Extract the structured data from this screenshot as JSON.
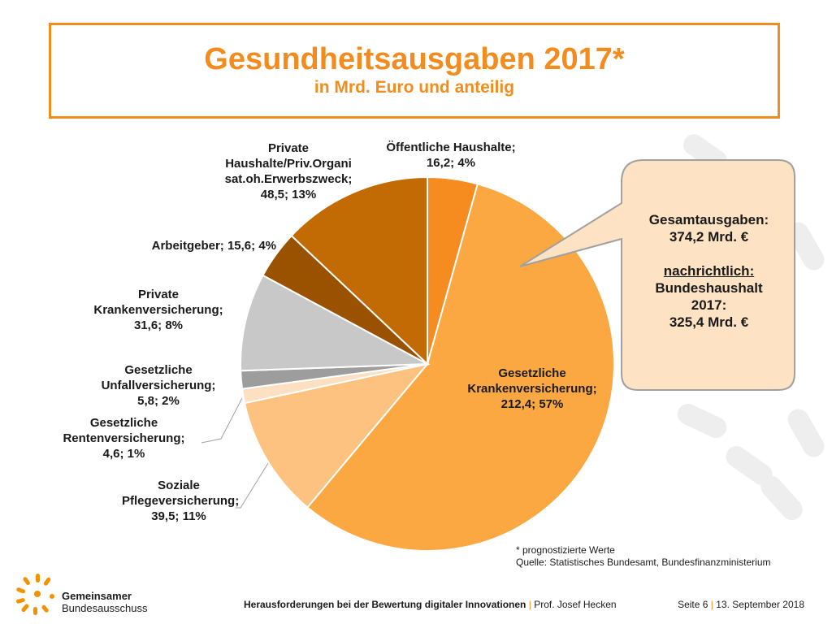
{
  "title": "Gesundheitsausgaben 2017*",
  "subtitle": "in Mrd. Euro und anteilig",
  "chart_data": {
    "type": "pie",
    "title": "Gesundheitsausgaben 2017*",
    "subtitle": "in Mrd. Euro und anteilig",
    "unit": "Mrd. Euro",
    "slices": [
      {
        "label": "Öffentliche Haushalte",
        "value": 16.2,
        "percent": 4,
        "color": "#f68b1f",
        "text": "Öffentliche Haushalte;\n16,2; 4%"
      },
      {
        "label": "Gesetzliche Krankenversicherung",
        "value": 212.4,
        "percent": 57,
        "color": "#fba843",
        "text": "Gesetzliche\nKrankenversicherung;\n212,4; 57%"
      },
      {
        "label": "Soziale Pflegeversicherung",
        "value": 39.5,
        "percent": 11,
        "color": "#fdc27f",
        "text": "Soziale\nPflegeversicherung;\n39,5; 11%"
      },
      {
        "label": "Gesetzliche Rentenversicherung",
        "value": 4.6,
        "percent": 1,
        "color": "#fde0c2",
        "text": "Gesetzliche\nRentenversicherung;\n4,6; 1%"
      },
      {
        "label": "Gesetzliche Unfallversicherung",
        "value": 5.8,
        "percent": 2,
        "color": "#9d9d9d",
        "text": "Gesetzliche\nUnfallversicherung;\n5,8; 2%"
      },
      {
        "label": "Private Krankenversicherung",
        "value": 31.6,
        "percent": 8,
        "color": "#c8c8c8",
        "text": "Private\nKrankenversicherung;\n31,6; 8%"
      },
      {
        "label": "Arbeitgeber",
        "value": 15.6,
        "percent": 4,
        "color": "#9a5200",
        "text": "Arbeitgeber; 15,6; 4%"
      },
      {
        "label": "Private Haushalte/Priv.Organisat.oh.Erwerbszweck",
        "value": 48.5,
        "percent": 13,
        "color": "#c26a04",
        "text": "Private\nHaushalte/Priv.Organi\nsat.oh.Erwerbszweck;\n48,5; 13%"
      }
    ]
  },
  "callout": {
    "line1": "Gesamtausgaben:",
    "line2": "374,2 Mrd. €",
    "line3": "nachrichtlich:",
    "line4": "Bundeshaushalt",
    "line5": "2017:",
    "line6": "325,4 Mrd. €"
  },
  "notes": {
    "footnote": "* prognostizierte Werte",
    "source": "Quelle: Statistisches Bundesamt, Bundesfinanzministerium"
  },
  "logo": {
    "line1": "Gemeinsamer",
    "line2": "Bundesausschuss"
  },
  "footer": {
    "talk_title": "Herausforderungen bei der Bewertung digitaler Innovationen",
    "separator": "|",
    "speaker": "Prof. Josef Hecken",
    "page": "Seite 6",
    "date": "13. September 2018"
  },
  "colors": {
    "accent": "#f28c1e",
    "callout_fill": "#fde2c4",
    "callout_border": "#a0a0a0"
  }
}
